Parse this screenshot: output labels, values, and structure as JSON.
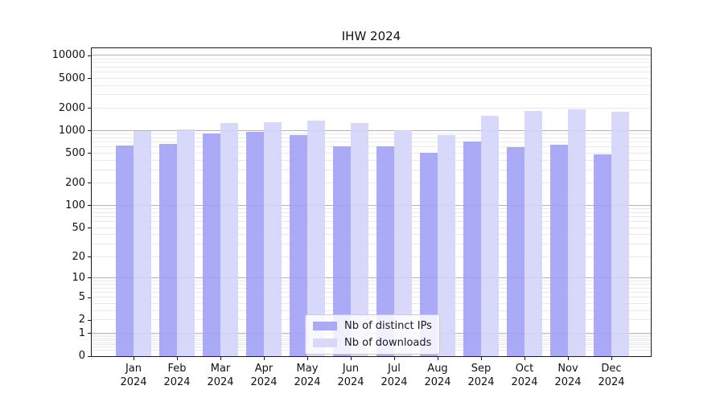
{
  "figure": {
    "title": "IHW 2024"
  },
  "chart_data": {
    "type": "bar",
    "title": "IHW 2024",
    "categories": [
      "Jan 2024",
      "Feb 2024",
      "Mar 2024",
      "Apr 2024",
      "May 2024",
      "Jun 2024",
      "Jul 2024",
      "Aug 2024",
      "Sep 2024",
      "Oct 2024",
      "Nov 2024",
      "Dec 2024"
    ],
    "months": [
      "Jan",
      "Feb",
      "Mar",
      "Apr",
      "May",
      "Jun",
      "Jul",
      "Aug",
      "Sep",
      "Oct",
      "Nov",
      "Dec"
    ],
    "year": "2024",
    "series": [
      {
        "name": "Nb of distinct IPs",
        "color": "#9e9ef5",
        "values": [
          640,
          670,
          930,
          980,
          870,
          620,
          620,
          510,
          730,
          600,
          650,
          480
        ]
      },
      {
        "name": "Nb of downloads",
        "color": "#d3d3fa",
        "values": [
          1000,
          1040,
          1260,
          1320,
          1370,
          1270,
          1020,
          880,
          1580,
          1860,
          1950,
          1800
        ]
      }
    ],
    "yscale": "symlog (log10 of 1+value)",
    "yticks": [
      0,
      1,
      2,
      5,
      10,
      20,
      50,
      100,
      200,
      500,
      1000,
      2000,
      5000,
      10000
    ],
    "ylim": [
      0,
      12589
    ],
    "xlabel": "",
    "ylabel": "",
    "grid": "on (horizontal, minor + major)",
    "legend": {
      "position": "lower center inside plot",
      "entries": [
        "Nb of distinct IPs",
        "Nb of downloads"
      ]
    },
    "colors": {
      "bar_distinct_ips": "#aaaaf6",
      "bar_downloads": "#d8d8f9",
      "gridline_minor": "#eaeaea",
      "gridline_major": "#b3b3b3",
      "axis": "#1a1a1a"
    }
  }
}
